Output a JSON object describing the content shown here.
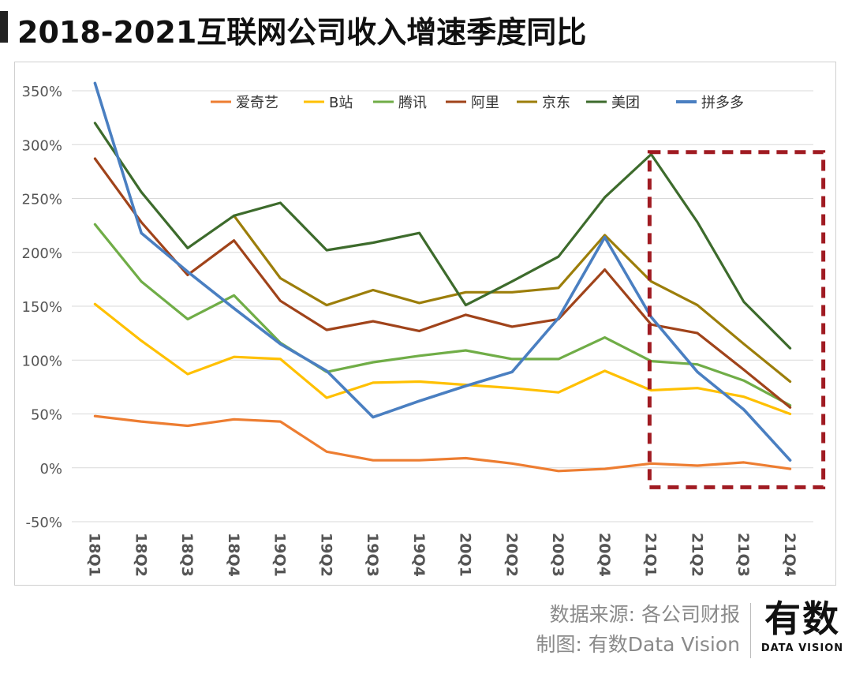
{
  "title": "2018-2021互联网公司收入增速季度同比",
  "source_line1": "数据来源: 各公司财报",
  "source_line2": "制图: 有数Data Vision",
  "brand": {
    "logo_text": "有数",
    "subtitle": "DATA VISION"
  },
  "chart_data": {
    "type": "line",
    "title": "",
    "xlabel": "",
    "ylabel": "",
    "ylim": [
      -50,
      350
    ],
    "yticks": [
      -50,
      0,
      50,
      100,
      150,
      200,
      250,
      300,
      350
    ],
    "ytick_labels": [
      "-50%",
      "0%",
      "50%",
      "100%",
      "150%",
      "200%",
      "250%",
      "300%",
      "350%"
    ],
    "categories": [
      "18Q1",
      "18Q2",
      "18Q3",
      "18Q4",
      "19Q1",
      "19Q2",
      "19Q3",
      "19Q4",
      "20Q1",
      "20Q2",
      "20Q3",
      "20Q4",
      "21Q1",
      "21Q2",
      "21Q3",
      "21Q4"
    ],
    "grid": true,
    "legend_position": "top",
    "series": [
      {
        "name": "爱奇艺",
        "color": "#ed7d31",
        "values": [
          48,
          43,
          39,
          45,
          43,
          15,
          7,
          7,
          9,
          4,
          -3,
          -1,
          4,
          2,
          5,
          -1
        ]
      },
      {
        "name": "B站",
        "color": "#ffc000",
        "values": [
          152,
          118,
          87,
          103,
          101,
          65,
          79,
          80,
          77,
          74,
          70,
          90,
          72,
          74,
          66,
          50
        ]
      },
      {
        "name": "腾讯",
        "color": "#70ad47",
        "values": [
          226,
          173,
          138,
          160,
          116,
          89,
          98,
          104,
          109,
          101,
          101,
          121,
          99,
          96,
          81,
          58
        ]
      },
      {
        "name": "阿里",
        "color": "#a0431a",
        "values": [
          287,
          228,
          179,
          211,
          155,
          128,
          136,
          127,
          142,
          131,
          138,
          184,
          133,
          125,
          91,
          56
        ]
      },
      {
        "name": "京东",
        "color": "#9c7e0a",
        "values": [
          null,
          null,
          null,
          234,
          176,
          151,
          165,
          153,
          163,
          163,
          167,
          216,
          173,
          151,
          115,
          80
        ]
      },
      {
        "name": "美团",
        "color": "#3d6b2c",
        "values": [
          320,
          256,
          204,
          234,
          246,
          202,
          209,
          218,
          151,
          173,
          196,
          251,
          291,
          228,
          154,
          111
        ]
      },
      {
        "name": "拼多多",
        "color": "#4a7fc1",
        "values": [
          357,
          218,
          182,
          148,
          115,
          90,
          47,
          62,
          76,
          89,
          139,
          214,
          140,
          89,
          54,
          7
        ]
      }
    ],
    "annotation": {
      "type": "dashed-rectangle",
      "color": "#a01b22",
      "x_from": "21Q1",
      "x_to": "21Q4"
    }
  }
}
